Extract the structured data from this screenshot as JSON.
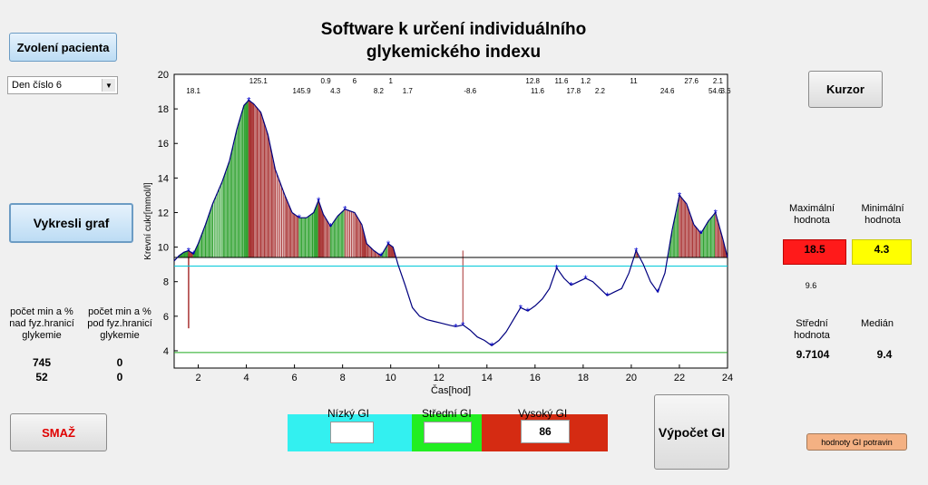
{
  "title_line1": "Software k určení individuálního",
  "title_line2": "glykemického indexu",
  "buttons": {
    "select_patient": "Zvolení pacienta",
    "draw_graph": "Vykresli graf",
    "delete": "SMAŽ",
    "cursor": "Kurzor",
    "compute_gi": "Výpočet GI",
    "gi_foods": "hodnoty GI potravin"
  },
  "day_select": {
    "value": "Den číslo 6"
  },
  "stats": {
    "above_label": "počet min a % nad fyz.hranicí glykemie",
    "below_label": "počet min a % pod fyz.hranicí glykemie",
    "above_min": "745",
    "above_pct": "52",
    "below_min": "0",
    "below_pct": "0"
  },
  "right": {
    "max_label": "Maximální hodnota",
    "min_label": "Minimální hodnota",
    "max_value": "18.5",
    "min_value": "4.3",
    "extra_value": "9.6",
    "mean_label": "Střední hodnota",
    "median_label": "Medián",
    "mean_value": "9.7104",
    "median_value": "9.4"
  },
  "gi": {
    "low_label": "Nízký GI",
    "mid_label": "Střední GI",
    "high_label": "Vysoký GI",
    "low_value": "",
    "mid_value": "",
    "high_value": "86"
  },
  "colors": {
    "low": "#33f0f0",
    "mid": "#22ee22",
    "high": "#d52b12",
    "max_bg": "#ff1a1a",
    "min_bg": "#ffff00",
    "gi_foods_bg": "#f4b183",
    "curve": "#00007f",
    "above_area": "#2ca02c",
    "above_area_fall": "#a83232"
  },
  "chart_data": {
    "type": "line",
    "xlabel": "Čas[hod]",
    "ylabel": "Krevní cukr[mmol/l]",
    "xlim": [
      1,
      24
    ],
    "ylim": [
      3,
      20
    ],
    "xticks": [
      2,
      4,
      6,
      8,
      10,
      12,
      14,
      16,
      18,
      20,
      22,
      24
    ],
    "yticks": [
      4,
      6,
      8,
      10,
      12,
      14,
      16,
      18,
      20
    ],
    "reference_lines": {
      "upper": 9.4,
      "cyan": 8.9,
      "lower": 3.9
    },
    "x": [
      1.0,
      1.2,
      1.4,
      1.6,
      1.8,
      2.0,
      2.3,
      2.6,
      3.0,
      3.3,
      3.6,
      3.9,
      4.1,
      4.3,
      4.6,
      4.9,
      5.2,
      5.6,
      5.9,
      6.2,
      6.5,
      6.8,
      7.0,
      7.2,
      7.5,
      7.8,
      8.1,
      8.5,
      8.8,
      9.0,
      9.3,
      9.6,
      9.9,
      10.1,
      10.3,
      10.6,
      10.9,
      11.2,
      11.5,
      11.8,
      12.1,
      12.4,
      12.7,
      13.0,
      13.3,
      13.6,
      13.9,
      14.2,
      14.5,
      14.8,
      15.1,
      15.4,
      15.7,
      16.0,
      16.3,
      16.6,
      16.9,
      17.2,
      17.5,
      17.8,
      18.1,
      18.4,
      18.7,
      19.0,
      19.3,
      19.6,
      19.9,
      20.2,
      20.5,
      20.8,
      21.1,
      21.4,
      21.7,
      22.0,
      22.3,
      22.6,
      22.9,
      23.2,
      23.5,
      23.8,
      24.0
    ],
    "y": [
      9.2,
      9.5,
      9.7,
      9.8,
      9.6,
      10.2,
      11.3,
      12.5,
      13.8,
      15.0,
      16.8,
      18.2,
      18.5,
      18.3,
      17.8,
      16.5,
      14.5,
      13.0,
      12.0,
      11.7,
      11.7,
      12.0,
      12.7,
      11.9,
      11.2,
      11.8,
      12.2,
      12.0,
      11.3,
      10.2,
      9.8,
      9.5,
      10.2,
      10.0,
      9.0,
      7.8,
      6.5,
      6.0,
      5.8,
      5.7,
      5.6,
      5.5,
      5.4,
      5.5,
      5.2,
      4.8,
      4.6,
      4.3,
      4.6,
      5.1,
      5.8,
      6.5,
      6.3,
      6.6,
      7.0,
      7.6,
      8.8,
      8.2,
      7.8,
      8.0,
      8.2,
      8.0,
      7.6,
      7.2,
      7.4,
      7.6,
      8.5,
      9.8,
      9.0,
      8.0,
      7.4,
      8.5,
      11.0,
      13.0,
      12.5,
      11.3,
      10.8,
      11.5,
      12.0,
      10.5,
      9.4
    ],
    "top_labels_upper": [
      {
        "x": 4.5,
        "text": "125.1"
      },
      {
        "x": 7.3,
        "text": "0.9"
      },
      {
        "x": 8.5,
        "text": "6"
      },
      {
        "x": 10.0,
        "text": "1"
      },
      {
        "x": 15.9,
        "text": "12.8"
      },
      {
        "x": 17.1,
        "text": "11.6"
      },
      {
        "x": 18.1,
        "text": "1.2"
      },
      {
        "x": 20.1,
        "text": "11"
      },
      {
        "x": 22.5,
        "text": "27.6"
      },
      {
        "x": 23.6,
        "text": "2.1"
      }
    ],
    "top_labels_lower": [
      {
        "x": 1.8,
        "text": "18.1"
      },
      {
        "x": 6.3,
        "text": "145.9"
      },
      {
        "x": 7.7,
        "text": "4.3"
      },
      {
        "x": 9.5,
        "text": "8.2"
      },
      {
        "x": 10.7,
        "text": "1.7"
      },
      {
        "x": 13.3,
        "text": "-8.6"
      },
      {
        "x": 16.1,
        "text": "11.6"
      },
      {
        "x": 17.6,
        "text": "17.8"
      },
      {
        "x": 18.7,
        "text": "2.2"
      },
      {
        "x": 21.5,
        "text": "24.6"
      },
      {
        "x": 23.5,
        "text": "54.6"
      },
      {
        "x": 24.0,
        "text": "3.6"
      }
    ]
  }
}
